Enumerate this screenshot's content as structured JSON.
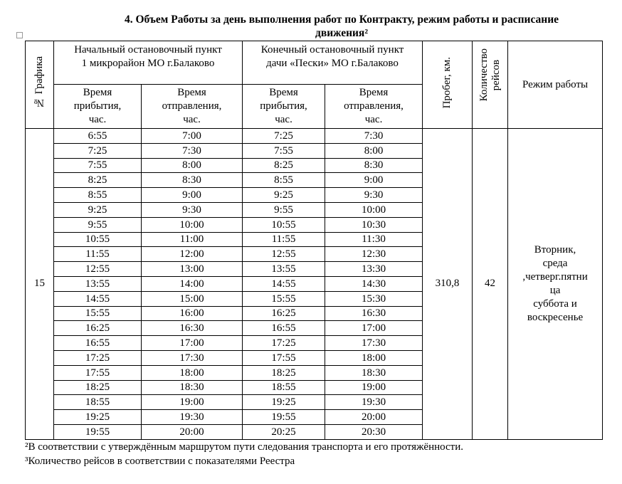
{
  "header": {
    "title_lines": [
      "4. Объем Работы за день выполнения работ по Контракту, режим работы и расписание",
      "движения²"
    ]
  },
  "table": {
    "headers": {
      "schedule_no": "№ Графика",
      "start_stop": [
        "Начальный остановочный пункт",
        "1 микрорайон МО г.Балаково"
      ],
      "end_stop": [
        "Конечный остановочный пункт",
        "дачи «Пески» МО г.Балаково"
      ],
      "mileage": "Пробег, км.",
      "trips": [
        "Количество",
        "рейсов"
      ],
      "mode": "Режим работы",
      "arrival": [
        "Время",
        "прибытия,",
        "час."
      ],
      "departure": [
        "Время",
        "отправления,",
        "час."
      ]
    },
    "schedule_no": "15",
    "mileage": "310,8",
    "trips": "42",
    "mode_lines": [
      "Вторник,",
      "среда",
      ",четверг.пятни",
      "ца",
      "суббота и",
      "воскресенье"
    ],
    "rows": [
      [
        "6:55",
        "7:00",
        "7:25",
        "7:30"
      ],
      [
        "7:25",
        "7:30",
        "7:55",
        "8:00"
      ],
      [
        "7:55",
        "8:00",
        "8:25",
        "8:30"
      ],
      [
        "8:25",
        "8:30",
        "8:55",
        "9:00"
      ],
      [
        "8:55",
        "9:00",
        "9:25",
        "9:30"
      ],
      [
        "9:25",
        "9:30",
        "9:55",
        "10:00"
      ],
      [
        "9:55",
        "10:00",
        "10:55",
        "10:30"
      ],
      [
        "10:55",
        "11:00",
        "11:55",
        "11:30"
      ],
      [
        "11:55",
        "12:00",
        "12:55",
        "12:30"
      ],
      [
        "12:55",
        "13:00",
        "13:55",
        "13:30"
      ],
      [
        "13:55",
        "14:00",
        "14:55",
        "14:30"
      ],
      [
        "14:55",
        "15:00",
        "15:55",
        "15:30"
      ],
      [
        "15:55",
        "16:00",
        "16:25",
        "16:30"
      ],
      [
        "16:25",
        "16:30",
        "16:55",
        "17:00"
      ],
      [
        "16:55",
        "17:00",
        "17:25",
        "17:30"
      ],
      [
        "17:25",
        "17:30",
        "17:55",
        "18:00"
      ],
      [
        "17:55",
        "18:00",
        "18:25",
        "18:30"
      ],
      [
        "18:25",
        "18:30",
        "18:55",
        "19:00"
      ],
      [
        "18:55",
        "19:00",
        "19:25",
        "19:30"
      ],
      [
        "19:25",
        "19:30",
        "19:55",
        "20:00"
      ],
      [
        "19:55",
        "20:00",
        "20:25",
        "20:30"
      ]
    ]
  },
  "footnotes": [
    "²В соответствии с утверждённым маршрутом пути следования транспорта и его протяжённости.",
    "³Количество рейсов в соответствии с показателями Реестра"
  ]
}
